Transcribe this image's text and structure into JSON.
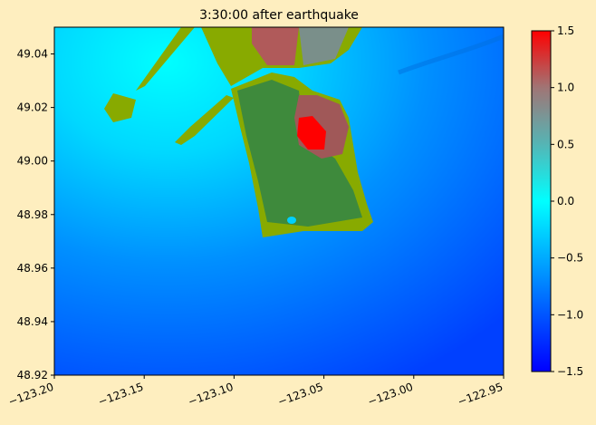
{
  "chart_data": {
    "type": "image",
    "title": "3:30:00 after earthquake",
    "xlim": [
      -123.2,
      -122.95
    ],
    "xticks": [
      {
        "value": -123.2,
        "label": "−123.20"
      },
      {
        "value": -123.15,
        "label": "−123.15"
      },
      {
        "value": -123.1,
        "label": "−123.10"
      },
      {
        "value": -123.05,
        "label": "−123.05"
      },
      {
        "value": -123.0,
        "label": "−123.00"
      },
      {
        "value": -122.95,
        "label": "−122.95"
      }
    ],
    "ylim": [
      48.92,
      49.05
    ],
    "yticks": [
      48.92,
      48.94,
      48.96,
      48.98,
      {
        "value": 49.0,
        "label": "49.00"
      },
      49.02,
      49.04
    ],
    "colorbar": {
      "lim": [
        -1.5,
        1.5
      ],
      "ticks": [
        {
          "value": -1.5,
          "label": "−1.5"
        },
        {
          "value": -1.0,
          "label": "−1.0"
        },
        {
          "value": -0.5,
          "label": "−0.5"
        },
        {
          "value": 0.0,
          "label": "0.0"
        },
        0.5,
        {
          "value": 1.0,
          "label": "1.0"
        },
        1.5
      ]
    }
  }
}
